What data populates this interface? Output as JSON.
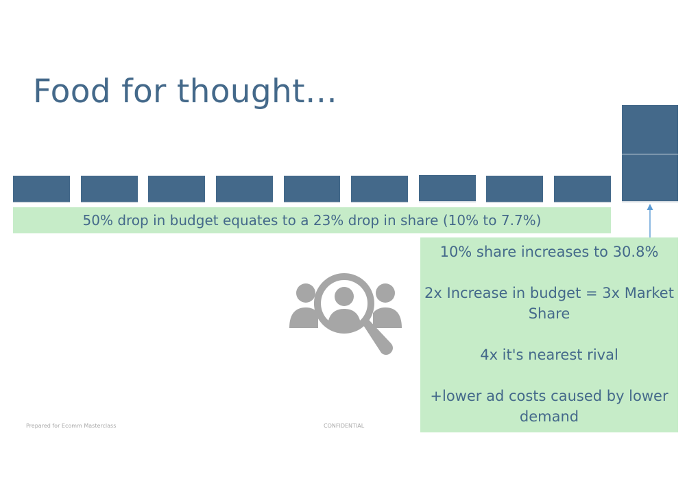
{
  "slide": {
    "title": "Food for thought…",
    "caption": "50% drop in budget equates to a 23% drop in share (10% to 7.7%)",
    "panel_lines": [
      "10%  share increases to 30.8%",
      "2x Increase in budget = 3x Market Share",
      "4x it's nearest rival",
      "+lower ad costs caused by lower demand"
    ],
    "footer_left": "Prepared for Ecomm Masterclass",
    "footer_center": "CONFIDENTIAL"
  },
  "colors": {
    "title": "#44698a",
    "block": "#44698a",
    "callout_bg": "#c6ecc8",
    "callout_text": "#44698a",
    "arrow": "#5b9bd5",
    "icon": "#a6a6a6"
  },
  "icons": {
    "people_search": "people-search-icon",
    "arrow": "arrow-up-icon"
  }
}
